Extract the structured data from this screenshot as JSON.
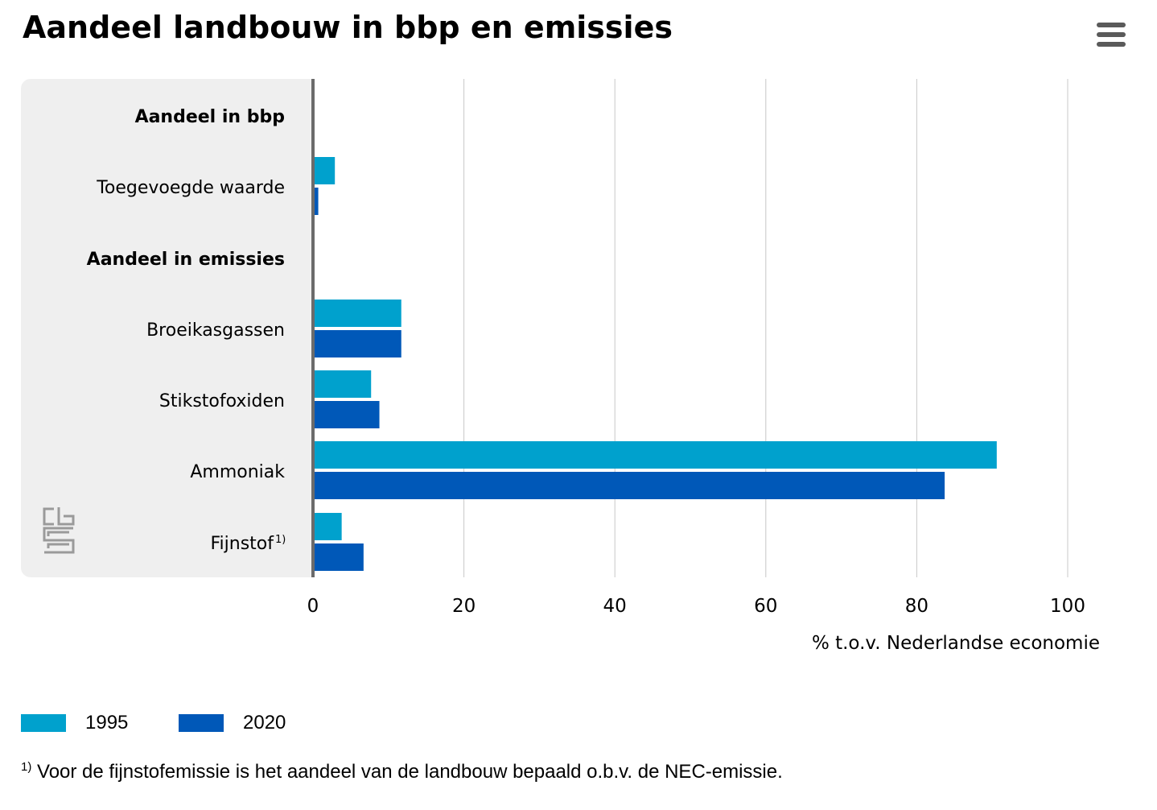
{
  "title": "Aandeel landbouw in bbp en emissies",
  "menu_icon": "hamburger-menu-icon",
  "logo": "cbs-logo-icon",
  "colors": {
    "1995": "#00a1cd",
    "2020": "#0058b8",
    "panel": "#efefef",
    "axis": "#6b6b6b",
    "grid": "#c8c8c8"
  },
  "chart_data": {
    "type": "bar",
    "orientation": "horizontal",
    "title": "Aandeel landbouw in bbp en emissies",
    "categories": [
      "Aandeel in bbp",
      "Toegevoegde waarde",
      "Aandeel in emissies",
      "Broeikasgassen",
      "Stikstofoxiden",
      "Ammoniak",
      "Fijnstof"
    ],
    "category_bold": [
      true,
      false,
      true,
      false,
      false,
      false,
      false
    ],
    "category_suffix": [
      "",
      "",
      "",
      "",
      "",
      "",
      "1)"
    ],
    "series": [
      {
        "name": "1995",
        "color": "#00a1cd",
        "values": [
          null,
          2.9,
          null,
          11.7,
          7.7,
          90.6,
          3.8
        ]
      },
      {
        "name": "2020",
        "color": "#0058b8",
        "values": [
          null,
          0.7,
          null,
          11.7,
          8.8,
          83.7,
          6.7
        ]
      }
    ],
    "xlabel": "% t.o.v. Nederlandse economie",
    "ylabel": "",
    "xlim": [
      0,
      100
    ],
    "xticks": [
      0,
      20,
      40,
      60,
      80,
      100
    ],
    "grid": true,
    "legend": "bottom-left"
  },
  "legend": [
    {
      "label": "1995"
    },
    {
      "label": "2020"
    }
  ],
  "footnote": {
    "marker": "1)",
    "text": "Voor de fijnstofemissie is het aandeel van de landbouw bepaald o.b.v. de NEC-emissie."
  }
}
